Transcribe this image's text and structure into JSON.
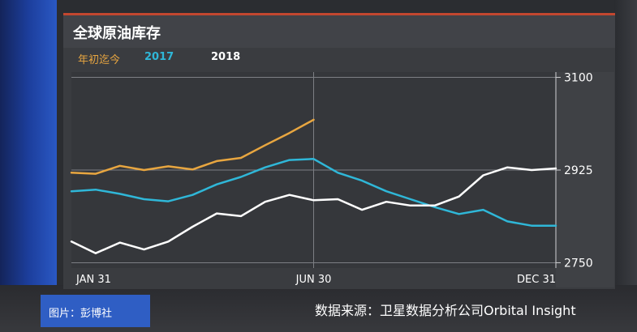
{
  "header": {
    "title": "全球原油库存"
  },
  "caption": "图片：彭博社",
  "source": "数据来源：卫星数据分析公司Orbital Insight",
  "colors": {
    "ytd": "#e8a640",
    "s2017": "#2fb7d8",
    "s2018": "#ffffff",
    "accent": "#c2472f"
  },
  "chart_data": {
    "type": "line",
    "title": "全球原油库存",
    "x": [
      0,
      0.05,
      0.1,
      0.15,
      0.2,
      0.25,
      0.3,
      0.35,
      0.4,
      0.45,
      0.5,
      0.55,
      0.6,
      0.65,
      0.7,
      0.75,
      0.8,
      0.85,
      0.9,
      0.95,
      1.0
    ],
    "xticks": [
      "JAN 31",
      "JUN 30",
      "DEC 31"
    ],
    "yticks": [
      3100,
      2925,
      2750
    ],
    "ylim": [
      2740,
      3110
    ],
    "legend_position": "top-left",
    "grid": true,
    "series": [
      {
        "name": "年初迄今",
        "x": [
          0,
          0.05,
          0.1,
          0.15,
          0.2,
          0.25,
          0.3,
          0.35,
          0.4,
          0.45,
          0.5
        ],
        "values": [
          2920,
          2918,
          2933,
          2925,
          2932,
          2926,
          2942,
          2948,
          2972,
          2995,
          3020
        ]
      },
      {
        "name": "2017",
        "values": [
          2885,
          2888,
          2880,
          2870,
          2866,
          2878,
          2898,
          2912,
          2930,
          2944,
          2946,
          2920,
          2905,
          2885,
          2870,
          2855,
          2842,
          2850,
          2828,
          2820,
          2820
        ]
      },
      {
        "name": "2018",
        "values": [
          2790,
          2768,
          2788,
          2775,
          2790,
          2818,
          2843,
          2838,
          2865,
          2878,
          2868,
          2870,
          2850,
          2865,
          2858,
          2858,
          2875,
          2915,
          2930,
          2925,
          2928
        ]
      }
    ]
  }
}
